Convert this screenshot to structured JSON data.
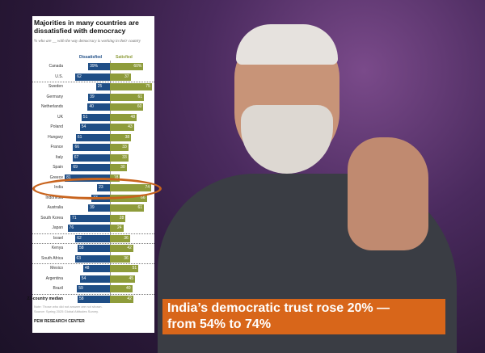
{
  "chart_data": {
    "type": "bar",
    "title": "Majorities in many countries are dissatisfied with democracy",
    "subtitle": "% who are __ with the way democracy is working in their country",
    "series": [
      {
        "name": "Dissatisfied",
        "color": "#1f4e86"
      },
      {
        "name": "Satisfied",
        "color": "#8e9c3b"
      }
    ],
    "categories": [
      "Canada",
      "U.S.",
      "Sweden",
      "Germany",
      "Netherlands",
      "UK",
      "Poland",
      "Hungary",
      "France",
      "Italy",
      "Spain",
      "Greece",
      "India",
      "Indonesia",
      "Australia",
      "South Korea",
      "Japan",
      "Israel",
      "Kenya",
      "South Africa",
      "Mexico",
      "Argentina",
      "Brazil",
      "23-country median"
    ],
    "dissatisfied": [
      39,
      62,
      25,
      39,
      40,
      51,
      54,
      61,
      66,
      67,
      69,
      81,
      23,
      33,
      39,
      71,
      76,
      62,
      58,
      63,
      48,
      54,
      59,
      58
    ],
    "satisfied": [
      60,
      37,
      75,
      61,
      60,
      48,
      43,
      38,
      33,
      33,
      30,
      18,
      74,
      66,
      61,
      28,
      24,
      36,
      42,
      36,
      51,
      45,
      40,
      42
    ],
    "labels_pct": [
      "39%",
      "60%"
    ],
    "groups_separated_after": [
      "U.S.",
      "Japan",
      "Israel",
      "South Africa",
      "Brazil"
    ],
    "highlighted": "India",
    "note": "Note: Those who did not answer are not shown.",
    "source": "Source: Spring 2025 Global Attitudes Survey.",
    "credit": "PEW RESEARCH CENTER"
  },
  "banner": {
    "line1": "India’s democratic trust rose 20% —",
    "line2": "from 54% to 74%"
  },
  "colors": {
    "highlight": "#c8641e",
    "banner": "#d8661a"
  }
}
